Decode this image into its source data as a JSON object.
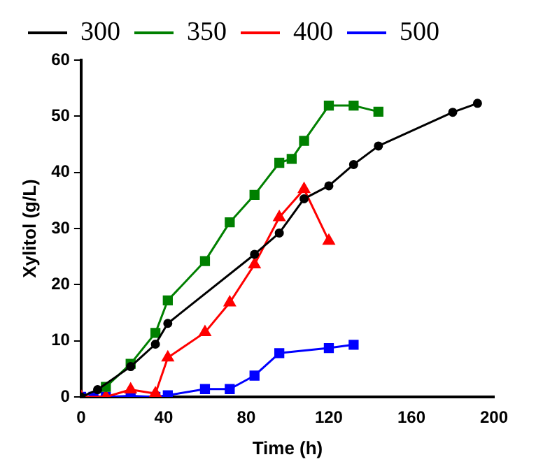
{
  "chart_data": {
    "type": "line",
    "xlabel": "Time (h)",
    "ylabel": "Xylitol (g/L)",
    "xlim": [
      0,
      200
    ],
    "xticks": [
      0,
      40,
      80,
      120,
      160,
      200
    ],
    "ylim": [
      0,
      60
    ],
    "yticks": [
      0,
      10,
      20,
      30,
      40,
      50,
      60
    ],
    "grid": false,
    "legend": "top",
    "line_style": "solid",
    "series": [
      {
        "name": "300",
        "color": "#000000",
        "marker": "circle",
        "x": [
          0,
          8,
          24,
          36,
          42,
          84,
          96,
          108,
          120,
          132,
          144,
          180,
          192
        ],
        "values": [
          0,
          1.3,
          5.4,
          9.4,
          13.1,
          25.4,
          29.2,
          35.3,
          37.6,
          41.4,
          44.7,
          50.7,
          52.3
        ]
      },
      {
        "name": "350",
        "color": "#008000",
        "marker": "square",
        "x": [
          12,
          24,
          36,
          42,
          60,
          72,
          84,
          96,
          102,
          108,
          120,
          132,
          144
        ],
        "values": [
          1.8,
          5.9,
          11.4,
          17.2,
          24.2,
          31.1,
          36,
          41.7,
          42.4,
          45.6,
          51.9,
          51.9,
          50.8
        ]
      },
      {
        "name": "400",
        "color": "#ff0000",
        "marker": "triangle",
        "x": [
          0,
          12,
          24,
          36,
          42,
          60,
          72,
          84,
          96,
          108,
          120
        ],
        "values": [
          0,
          0,
          1.3,
          0.6,
          7,
          11.5,
          16.8,
          23.6,
          32,
          37,
          27.8
        ]
      },
      {
        "name": "500",
        "color": "#0000ff",
        "marker": "square",
        "x": [
          0,
          6,
          12,
          24,
          36,
          42,
          60,
          72,
          84,
          96,
          120,
          132
        ],
        "values": [
          0,
          0,
          0,
          0.2,
          0,
          0.3,
          1.4,
          1.4,
          3.8,
          7.8,
          8.7,
          9.3
        ]
      }
    ]
  }
}
